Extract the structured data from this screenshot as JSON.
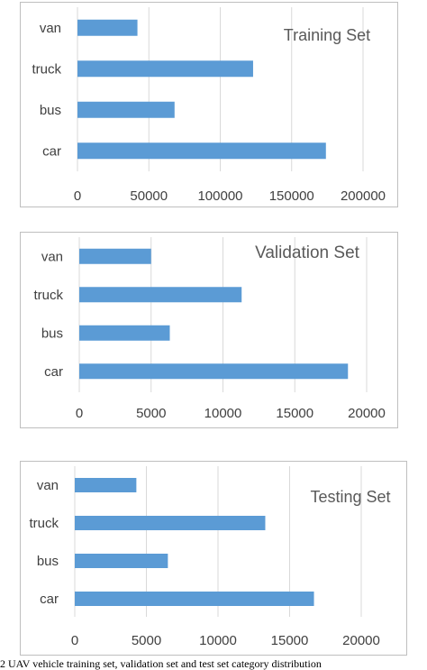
{
  "chart_data": [
    {
      "type": "bar",
      "orientation": "horizontal",
      "title": "Training Set",
      "categories": [
        "van",
        "truck",
        "bus",
        "car"
      ],
      "values": [
        42000,
        123000,
        68000,
        174000
      ],
      "xlim": [
        0,
        200000
      ],
      "xticks": [
        0,
        50000,
        100000,
        150000,
        200000
      ],
      "xtick_labels": [
        "0",
        "50000",
        "100000",
        "150000",
        "200000"
      ],
      "grid": "vertical",
      "bar_color": "#5b9bd5"
    },
    {
      "type": "bar",
      "orientation": "horizontal",
      "title": "Validation Set",
      "categories": [
        "van",
        "truck",
        "bus",
        "car"
      ],
      "values": [
        5000,
        11300,
        6300,
        18700
      ],
      "xlim": [
        0,
        20000
      ],
      "xticks": [
        0,
        5000,
        10000,
        15000,
        20000
      ],
      "xtick_labels": [
        "0",
        "5000",
        "10000",
        "15000",
        "20000"
      ],
      "grid": "vertical",
      "bar_color": "#5b9bd5"
    },
    {
      "type": "bar",
      "orientation": "horizontal",
      "title": "Testing Set",
      "categories": [
        "van",
        "truck",
        "bus",
        "car"
      ],
      "values": [
        4300,
        13300,
        6500,
        16700
      ],
      "xlim": [
        0,
        20000
      ],
      "xticks": [
        0,
        5000,
        10000,
        15000,
        20000
      ],
      "xtick_labels": [
        "0",
        "5000",
        "10000",
        "15000",
        "20000"
      ],
      "grid": "vertical",
      "bar_color": "#5b9bd5"
    }
  ],
  "caption": "2 UAV vehicle training set, validation set and test set category distribution"
}
